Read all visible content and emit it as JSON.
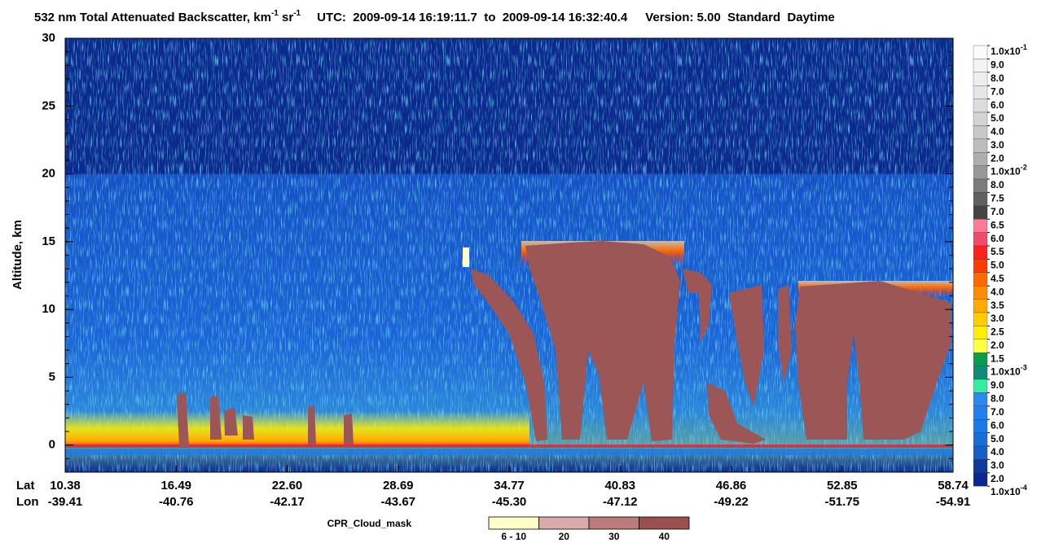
{
  "chart_data": {
    "type": "heatmap",
    "title": {
      "main": "532 nm Total Attenuated Backscatter, km",
      "exp1": "-1",
      "unit2": " sr",
      "exp2": "-1",
      "time": "UTC:  2009-09-14 16:19:11.7  to  2009-09-14 16:32:40.4",
      "version": "Version: 5.00  Standard  Daytime"
    },
    "ylabel": "Altitude, km",
    "ylim": [
      -2,
      30
    ],
    "yticks": [
      0,
      5,
      10,
      15,
      20,
      25,
      30
    ],
    "x_rows": [
      "Lat",
      "Lon"
    ],
    "lat": [
      "10.38",
      "16.49",
      "22.60",
      "28.69",
      "34.77",
      "40.83",
      "46.86",
      "52.85",
      "58.74"
    ],
    "lon": [
      "-39.41",
      "-40.76",
      "-42.17",
      "-43.67",
      "-45.30",
      "-47.12",
      "-49.22",
      "-51.75",
      "-54.91"
    ],
    "colorbar": {
      "labels": [
        {
          "text": "1.0x10",
          "sup": "-1"
        },
        "9.0",
        "8.0",
        "7.0",
        "6.0",
        "5.0",
        "4.0",
        "3.0",
        "2.0",
        {
          "text": "1.0x10",
          "sup": "-2"
        },
        "8.0",
        "7.5",
        "7.0",
        "6.5",
        "6.0",
        "5.5",
        "5.0",
        "4.5",
        "4.0",
        "3.5",
        "3.0",
        "2.5",
        "2.0",
        "1.5",
        {
          "text": "1.0x10",
          "sup": "-3"
        },
        "9.0",
        "8.0",
        "7.0",
        "6.0",
        "5.0",
        "4.0",
        "3.0",
        "2.0",
        {
          "text": "1.0x10",
          "sup": "-4"
        }
      ],
      "colors": [
        "#fbfbfb",
        "#f4f4f4",
        "#eeeeee",
        "#e6e6e6",
        "#dddddd",
        "#d3d3d3",
        "#c8c8c8",
        "#bdbdbd",
        "#aeaeae",
        "#989898",
        "#7c7c7c",
        "#606060",
        "#444444",
        "#ff7a98",
        "#f24a6a",
        "#ff2020",
        "#ff3c00",
        "#ff6a00",
        "#ff8c00",
        "#ffaa00",
        "#ffcc00",
        "#ffee00",
        "#ffff40",
        "#0a9a50",
        "#0f8a78",
        "#30f0a0",
        "#2a8af0",
        "#2080ee",
        "#1c7ae8",
        "#186ed8",
        "#1460c8",
        "#0e3aa0",
        "#0a2890"
      ]
    },
    "cpr_legend": {
      "title": "CPR_Cloud_mask",
      "labels": [
        "6 - 10",
        "20",
        "30",
        "40"
      ],
      "colors": [
        "#fffcc8",
        "#d9aaaa",
        "#ba7b7b",
        "#9c4f4f"
      ]
    }
  }
}
